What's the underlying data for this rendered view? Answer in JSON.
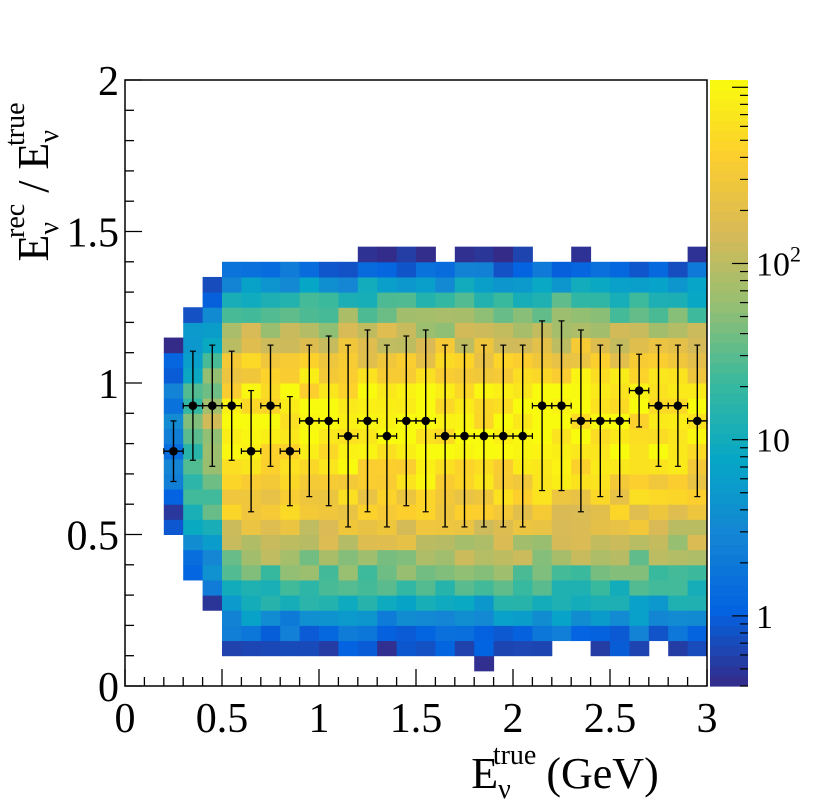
{
  "chart_data": {
    "type": "heatmap",
    "title": "",
    "xlabel": {
      "base": "E",
      "sub": "ν",
      "sup": "true",
      "unit": "(GeV)"
    },
    "ylabel": {
      "num_base": "E",
      "num_sub": "ν",
      "num_sup": "rec",
      "sep": " / ",
      "den_base": "E",
      "den_sub": "ν",
      "den_sup": "true"
    },
    "xlim": [
      0,
      3
    ],
    "ylim": [
      0,
      2
    ],
    "x_bin_width": 0.1,
    "y_bin_width": 0.05,
    "x_ticks": [
      {
        "value": 0,
        "label": "0"
      },
      {
        "value": 0.5,
        "label": "0.5"
      },
      {
        "value": 1,
        "label": "1"
      },
      {
        "value": 1.5,
        "label": "1.5"
      },
      {
        "value": 2,
        "label": "2"
      },
      {
        "value": 2.5,
        "label": "2.5"
      },
      {
        "value": 3,
        "label": "3"
      }
    ],
    "y_ticks": [
      {
        "value": 0,
        "label": "0"
      },
      {
        "value": 0.5,
        "label": "0.5"
      },
      {
        "value": 1,
        "label": "1"
      },
      {
        "value": 1.5,
        "label": "1.5"
      },
      {
        "value": 2,
        "label": "2"
      }
    ],
    "z_scale": "log",
    "z_range": [
      0.4,
      1100
    ],
    "z_ticks": [
      {
        "value": 1,
        "label": "1"
      },
      {
        "value": 10,
        "label": "10"
      },
      {
        "value": 100,
        "label": "10",
        "sup": "2"
      }
    ],
    "palette": [
      "#352a87",
      "#0363e1",
      "#1485d4",
      "#06a7c6",
      "#38b99e",
      "#92bf73",
      "#d9ba56",
      "#fcce2e",
      "#f9fb0e"
    ],
    "profile": {
      "x": [
        0.25,
        0.35,
        0.45,
        0.55,
        0.65,
        0.75,
        0.85,
        0.95,
        1.05,
        1.15,
        1.25,
        1.35,
        1.45,
        1.55,
        1.65,
        1.75,
        1.85,
        1.95,
        2.05,
        2.15,
        2.25,
        2.35,
        2.45,
        2.55,
        2.65,
        2.75,
        2.85,
        2.95
      ],
      "y": [
        0.775,
        0.925,
        0.925,
        0.925,
        0.775,
        0.925,
        0.775,
        0.875,
        0.875,
        0.825,
        0.875,
        0.825,
        0.875,
        0.875,
        0.825,
        0.825,
        0.825,
        0.825,
        0.825,
        0.925,
        0.925,
        0.875,
        0.875,
        0.875,
        0.975,
        0.925,
        0.925,
        0.875
      ],
      "x_err": 0.05,
      "y_err": [
        0.1,
        0.18,
        0.2,
        0.18,
        0.2,
        0.2,
        0.18,
        0.25,
        0.28,
        0.3,
        0.3,
        0.3,
        0.28,
        0.3,
        0.3,
        0.3,
        0.3,
        0.3,
        0.3,
        0.28,
        0.28,
        0.3,
        0.25,
        0.25,
        0.12,
        0.2,
        0.2,
        0.25
      ]
    }
  }
}
